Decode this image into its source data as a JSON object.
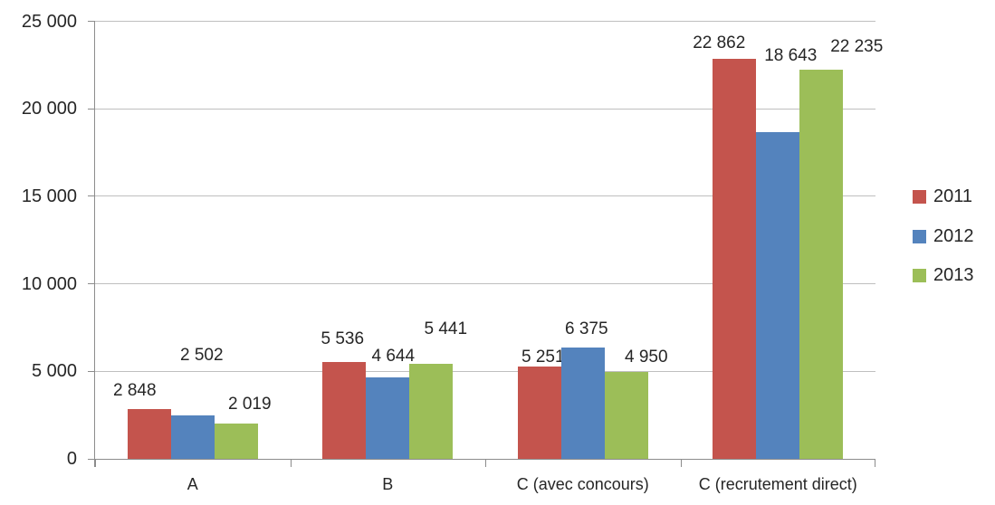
{
  "chart_data": {
    "type": "bar",
    "title": "",
    "xlabel": "",
    "ylabel": "",
    "categories": [
      "A",
      "B",
      "C (avec concours)",
      "C (recrutement direct)"
    ],
    "series": [
      {
        "name": "2011",
        "color": "#C4544D",
        "values": [
          2848,
          5536,
          5251,
          22862
        ],
        "labels": [
          "2 848",
          "5 536",
          "5 251",
          "22 862"
        ]
      },
      {
        "name": "2012",
        "color": "#5483BD",
        "values": [
          2502,
          4644,
          6375,
          18643
        ],
        "labels": [
          "2 502",
          "4 644",
          "6 375",
          "18 643"
        ]
      },
      {
        "name": "2013",
        "color": "#9CBE58",
        "values": [
          2019,
          5441,
          4950,
          22235
        ],
        "labels": [
          "2 019",
          "5 441",
          "4 950",
          "22 235"
        ]
      }
    ],
    "ylim": [
      0,
      25000
    ],
    "y_ticks": [
      {
        "value": 0,
        "label": "0"
      },
      {
        "value": 5000,
        "label": "5 000"
      },
      {
        "value": 10000,
        "label": "10 000"
      },
      {
        "value": 15000,
        "label": "15 000"
      },
      {
        "value": 20000,
        "label": "20 000"
      },
      {
        "value": 25000,
        "label": "25 000"
      }
    ],
    "grid": true,
    "legend_position": "right",
    "colors": {
      "axis": "#8C8C8C",
      "gridline": "#BFBFBF",
      "text": "#262626",
      "background": "#FFFFFF"
    }
  }
}
